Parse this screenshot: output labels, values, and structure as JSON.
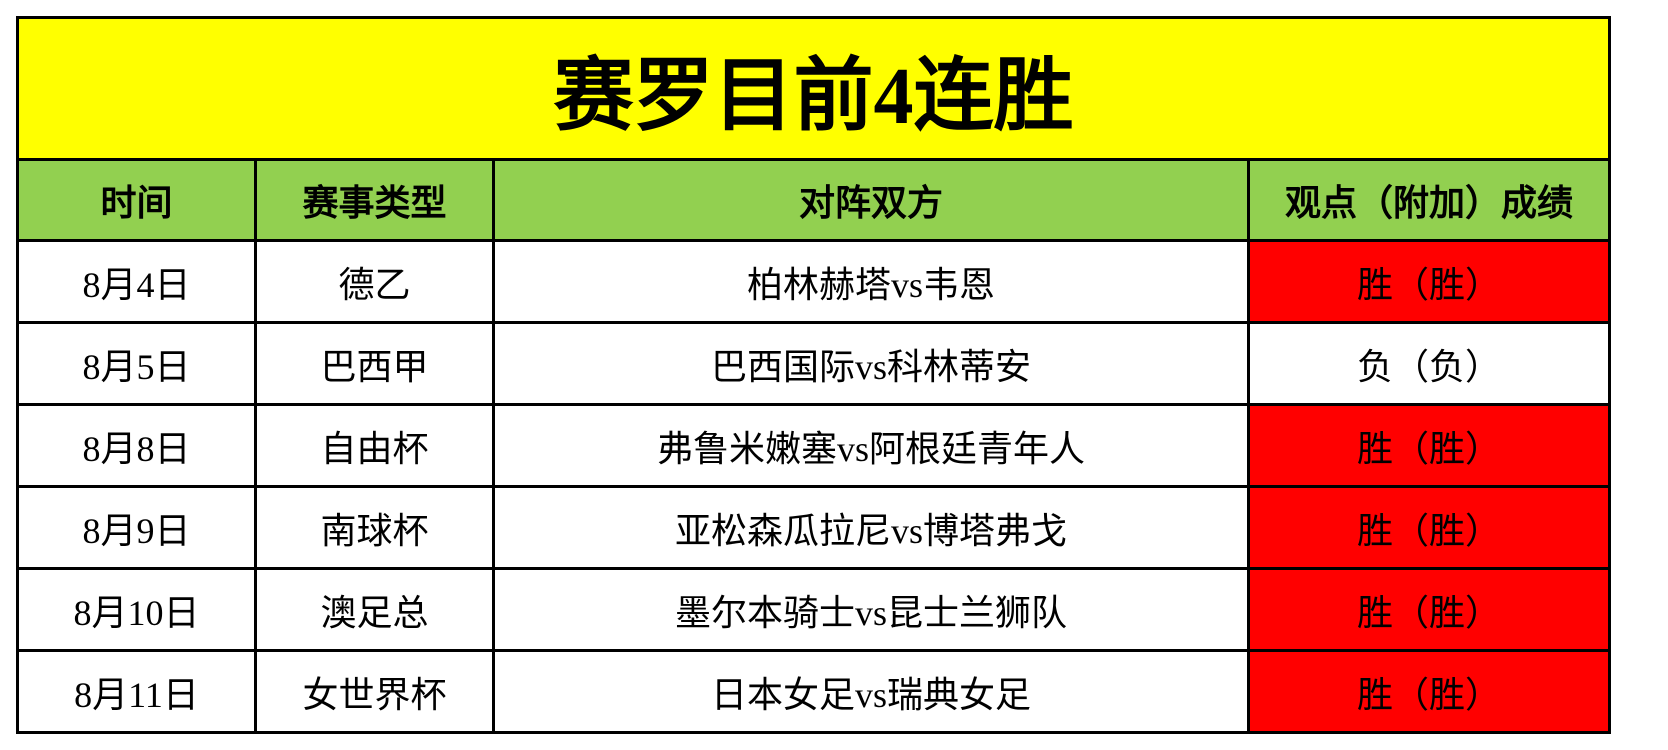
{
  "title": "赛罗目前4连胜",
  "headers": [
    "时间",
    "赛事类型",
    "对阵双方",
    "观点（附加）成绩"
  ],
  "rows": [
    {
      "date": "8月4日",
      "league": "德乙",
      "match": "柏林赫塔vs韦恩",
      "result": "胜（胜）",
      "win": true
    },
    {
      "date": "8月5日",
      "league": "巴西甲",
      "match": "巴西国际vs科林蒂安",
      "result": "负（负）",
      "win": false
    },
    {
      "date": "8月8日",
      "league": "自由杯",
      "match": "弗鲁米嫩塞vs阿根廷青年人",
      "result": "胜（胜）",
      "win": true
    },
    {
      "date": "8月9日",
      "league": "南球杯",
      "match": "亚松森瓜拉尼vs博塔弗戈",
      "result": "胜（胜）",
      "win": true
    },
    {
      "date": "8月10日",
      "league": "澳足总",
      "match": "墨尔本骑士vs昆士兰狮队",
      "result": "胜（胜）",
      "win": true
    },
    {
      "date": "8月11日",
      "league": "女世界杯",
      "match": "日本女足vs瑞典女足",
      "result": "胜（胜）",
      "win": true
    }
  ],
  "colors": {
    "title_bg": "#ffff00",
    "header_bg": "#92d050",
    "win_bg": "#ff0000"
  }
}
